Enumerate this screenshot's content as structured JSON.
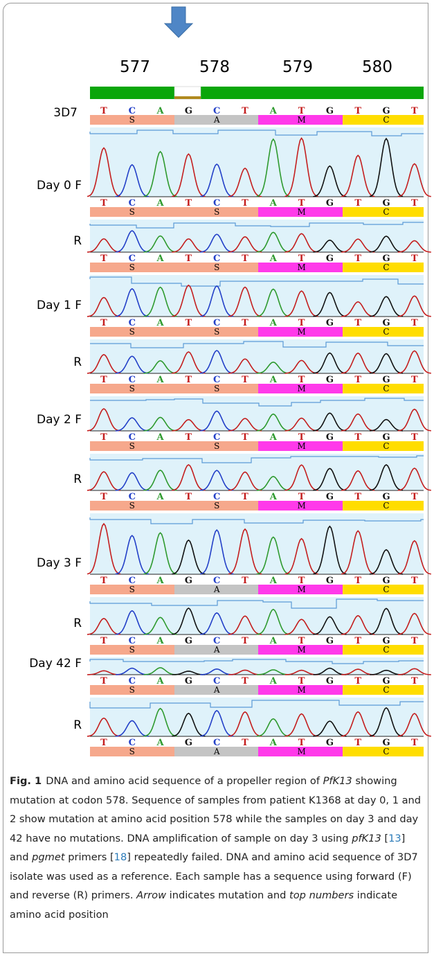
{
  "figure": {
    "positions": [
      577,
      578,
      579,
      580
    ],
    "rows": [
      {
        "label": "3D7",
        "bases": [
          "T",
          "C",
          "A",
          "G",
          "C",
          "T",
          "A",
          "T",
          "G",
          "T",
          "G",
          "T"
        ],
        "amino_acids": [
          "S",
          "A",
          "M",
          "C"
        ]
      },
      {
        "label": "Day 0 F",
        "bases": [
          "T",
          "C",
          "A",
          "T",
          "C",
          "T",
          "A",
          "T",
          "G",
          "T",
          "G",
          "T"
        ],
        "amino_acids": [
          "S",
          "S",
          "M",
          "C"
        ]
      },
      {
        "label": "R",
        "bases": [
          "T",
          "C",
          "A",
          "T",
          "C",
          "T",
          "A",
          "T",
          "G",
          "T",
          "G",
          "T"
        ],
        "amino_acids": [
          "S",
          "S",
          "M",
          "C"
        ]
      },
      {
        "label": "Day 1 F",
        "bases": [
          "T",
          "C",
          "A",
          "T",
          "C",
          "T",
          "A",
          "T",
          "G",
          "T",
          "G",
          "T"
        ],
        "amino_acids": [
          "S",
          "S",
          "M",
          "C"
        ]
      },
      {
        "label": "R",
        "bases": [
          "T",
          "C",
          "A",
          "T",
          "C",
          "T",
          "A",
          "T",
          "G",
          "T",
          "G",
          "T"
        ],
        "amino_acids": [
          "S",
          "S",
          "M",
          "C"
        ]
      },
      {
        "label": "Day 2 F",
        "bases": [
          "T",
          "C",
          "A",
          "T",
          "C",
          "T",
          "A",
          "T",
          "G",
          "T",
          "G",
          "T"
        ],
        "amino_acids": [
          "S",
          "S",
          "M",
          "C"
        ]
      },
      {
        "label": "R",
        "bases": [
          "T",
          "C",
          "A",
          "T",
          "C",
          "T",
          "A",
          "T",
          "G",
          "T",
          "G",
          "T"
        ],
        "amino_acids": [
          "S",
          "S",
          "M",
          "C"
        ]
      },
      {
        "label": "Day 3 F",
        "bases": [
          "T",
          "C",
          "A",
          "G",
          "C",
          "T",
          "A",
          "T",
          "G",
          "T",
          "G",
          "T"
        ],
        "amino_acids": [
          "S",
          "A",
          "M",
          "C"
        ]
      },
      {
        "label": "R",
        "bases": [
          "T",
          "C",
          "A",
          "G",
          "C",
          "T",
          "A",
          "T",
          "G",
          "T",
          "G",
          "T"
        ],
        "amino_acids": [
          "S",
          "A",
          "M",
          "C"
        ]
      },
      {
        "label": "Day 42 F",
        "bases": [
          "T",
          "C",
          "A",
          "G",
          "C",
          "T",
          "A",
          "T",
          "G",
          "T",
          "G",
          "T"
        ],
        "amino_acids": [
          "S",
          "A",
          "M",
          "C"
        ]
      },
      {
        "label": "R",
        "bases": [
          "T",
          "C",
          "A",
          "G",
          "C",
          "T",
          "A",
          "T",
          "G",
          "T",
          "G",
          "T"
        ],
        "amino_acids": [
          "S",
          "A",
          "M",
          "C"
        ]
      }
    ]
  },
  "caption": {
    "label": "Fig. 1",
    "segments": [
      {
        "text": "DNA and amino acid sequence of a propeller region of "
      },
      {
        "text": "PfK13",
        "style": "italic"
      },
      {
        "text": " showing mutation at codon 578. Sequence of samples from patient K1368 at day 0, 1 and 2 show mutation at amino acid position 578 while the samples on day 3 and day 42 have no mutations. DNA amplification of sample on day 3 using "
      },
      {
        "text": "pfK13",
        "style": "italic"
      },
      {
        "text": " ["
      },
      {
        "text": "13",
        "style": "ref"
      },
      {
        "text": "] and "
      },
      {
        "text": "pgmet",
        "style": "italic"
      },
      {
        "text": " primers ["
      },
      {
        "text": "18",
        "style": "ref"
      },
      {
        "text": "] repeatedly failed. DNA and amino acid sequence of 3D7 isolate was used as a reference. Each sample has a sequence using forward (F) and reverse (R) primers. "
      },
      {
        "text": "Arrow",
        "style": "italic"
      },
      {
        "text": " indicates mutation and "
      },
      {
        "text": "top numbers",
        "style": "italic"
      },
      {
        "text": " indicate amino acid position"
      }
    ]
  }
}
